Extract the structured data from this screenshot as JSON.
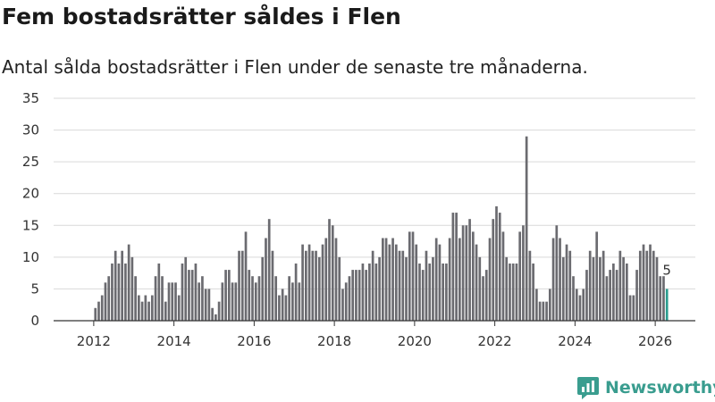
{
  "title": "Fem bostadsrätter såldes i Flen",
  "subtitle": "Antal sålda bostadsrätter i Flen under de senaste tre månaderna.",
  "brand": {
    "name": "Newsworthy",
    "icon": "bar-chart-logo-icon",
    "color": "#3a9d8f"
  },
  "chart_data": {
    "type": "bar",
    "title": "Fem bostadsrätter såldes i Flen",
    "subtitle": "Antal sålda bostadsrätter i Flen under de senaste tre månaderna.",
    "xlabel": "",
    "ylabel": "",
    "x_start": "2012-01",
    "x_ticks": [
      "2012",
      "2014",
      "2016",
      "2018",
      "2020",
      "2022",
      "2024",
      "2026"
    ],
    "y_ticks": [
      0,
      5,
      10,
      15,
      20,
      25,
      30,
      35
    ],
    "ylim": [
      0,
      35
    ],
    "xlim": [
      "2011-01",
      "2026-12"
    ],
    "grid": true,
    "legend": "none",
    "bar_color": "#6b6b70",
    "highlight_color": "#2a9d8f",
    "highlight_label": "5",
    "values": [
      2,
      3,
      4,
      6,
      7,
      9,
      11,
      9,
      11,
      9,
      12,
      10,
      7,
      4,
      3,
      4,
      3,
      4,
      7,
      9,
      7,
      3,
      6,
      6,
      6,
      4,
      9,
      10,
      8,
      8,
      9,
      6,
      7,
      5,
      5,
      2,
      1,
      3,
      6,
      8,
      8,
      6,
      6,
      11,
      11,
      14,
      8,
      7,
      6,
      7,
      10,
      13,
      16,
      11,
      7,
      4,
      5,
      4,
      7,
      6,
      9,
      6,
      12,
      11,
      12,
      11,
      11,
      10,
      12,
      13,
      16,
      15,
      13,
      10,
      5,
      6,
      7,
      8,
      8,
      8,
      9,
      8,
      9,
      11,
      9,
      10,
      13,
      13,
      12,
      13,
      12,
      11,
      11,
      10,
      14,
      14,
      12,
      9,
      8,
      11,
      9,
      10,
      13,
      12,
      9,
      9,
      13,
      17,
      17,
      13,
      15,
      15,
      16,
      14,
      12,
      10,
      7,
      8,
      13,
      16,
      18,
      17,
      14,
      10,
      9,
      9,
      9,
      14,
      15,
      29,
      11,
      9,
      5,
      3,
      3,
      3,
      5,
      13,
      15,
      13,
      10,
      12,
      11,
      7,
      5,
      4,
      5,
      8,
      11,
      10,
      14,
      10,
      11,
      7,
      8,
      9,
      8,
      11,
      10,
      9,
      4,
      4,
      8,
      11,
      12,
      11,
      12,
      11,
      10,
      7,
      7,
      5
    ]
  }
}
